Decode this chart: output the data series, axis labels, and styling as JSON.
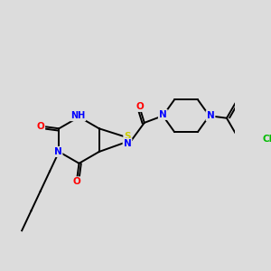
{
  "bg_color": "#dcdcdc",
  "atom_colors": {
    "N": "#0000ff",
    "O": "#ff0000",
    "S": "#cccc00",
    "Cl": "#00bb00",
    "C": "#000000",
    "H": "#666666"
  },
  "bond_color": "#000000"
}
